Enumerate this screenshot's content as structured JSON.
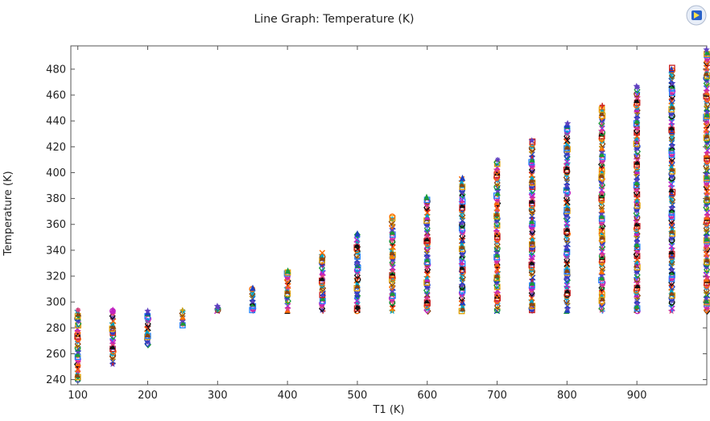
{
  "chart_data": {
    "type": "scatter",
    "title": "Line Graph: Temperature (K)",
    "xlabel": "T1 (K)",
    "ylabel": "Temperature (K)",
    "xlim": [
      90,
      1000
    ],
    "ylim": [
      236,
      498
    ],
    "xticks": [
      100,
      200,
      300,
      400,
      500,
      600,
      700,
      800,
      900
    ],
    "yticks": [
      240,
      260,
      280,
      300,
      320,
      340,
      360,
      380,
      400,
      420,
      440,
      460,
      480
    ],
    "grid": false,
    "legend": "none",
    "marker_shapes": [
      "circle",
      "square",
      "triangle",
      "star",
      "x",
      "plus",
      "diamond",
      "asterisk"
    ],
    "marker_colors": [
      "#1f3fbf",
      "#c81e1e",
      "#1a9a3a",
      "#00a0c0",
      "#c020c0",
      "#e0a000",
      "#101010",
      "#6040c0",
      "#ff6a00",
      "#2080ff",
      "#8b4513",
      "#e0407a"
    ],
    "columns": [
      {
        "x": 100,
        "min": 240,
        "max": 293
      },
      {
        "x": 150,
        "min": 252,
        "max": 293
      },
      {
        "x": 200,
        "min": 267,
        "max": 293
      },
      {
        "x": 250,
        "min": 282,
        "max": 293
      },
      {
        "x": 300,
        "min": 293,
        "max": 296
      },
      {
        "x": 350,
        "min": 293,
        "max": 310
      },
      {
        "x": 400,
        "min": 293,
        "max": 324
      },
      {
        "x": 450,
        "min": 293,
        "max": 338
      },
      {
        "x": 500,
        "min": 293,
        "max": 352
      },
      {
        "x": 550,
        "min": 293,
        "max": 366
      },
      {
        "x": 600,
        "min": 293,
        "max": 381
      },
      {
        "x": 650,
        "min": 293,
        "max": 395
      },
      {
        "x": 700,
        "min": 293,
        "max": 410
      },
      {
        "x": 750,
        "min": 293,
        "max": 424
      },
      {
        "x": 800,
        "min": 293,
        "max": 438
      },
      {
        "x": 850,
        "min": 293,
        "max": 452
      },
      {
        "x": 900,
        "min": 293,
        "max": 466
      },
      {
        "x": 950,
        "min": 293,
        "max": 481
      },
      {
        "x": 1000,
        "min": 293,
        "max": 495
      }
    ]
  }
}
